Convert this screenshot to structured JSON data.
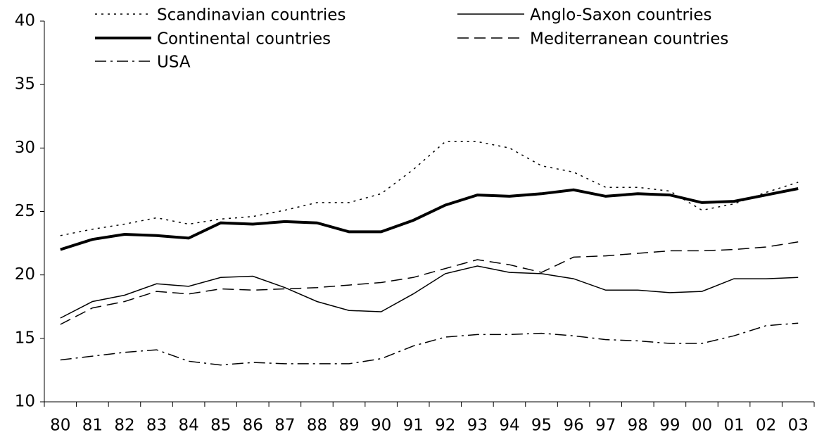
{
  "chart_data": {
    "type": "line",
    "categories": [
      "80",
      "81",
      "82",
      "83",
      "84",
      "85",
      "86",
      "87",
      "88",
      "89",
      "90",
      "91",
      "92",
      "93",
      "94",
      "95",
      "96",
      "97",
      "98",
      "99",
      "00",
      "01",
      "02",
      "03"
    ],
    "ylim": [
      10,
      40
    ],
    "yticks": [
      10,
      15,
      20,
      25,
      30,
      35,
      40
    ],
    "series": [
      {
        "name": "Scandinavian countries",
        "color": "#000000",
        "line_style": "dotted",
        "line_width": 1.5,
        "values": [
          23.1,
          23.6,
          24.0,
          24.5,
          24.0,
          24.4,
          24.6,
          25.1,
          25.7,
          25.7,
          26.4,
          28.3,
          30.5,
          30.5,
          30.0,
          28.6,
          28.1,
          26.9,
          26.9,
          26.6,
          25.1,
          25.6,
          26.5,
          27.3
        ]
      },
      {
        "name": "Anglo-Saxon countries",
        "color": "#000000",
        "line_style": "solid",
        "line_width": 1.5,
        "values": [
          16.6,
          17.9,
          18.4,
          19.3,
          19.1,
          19.8,
          19.9,
          19.0,
          17.9,
          17.2,
          17.1,
          18.5,
          20.1,
          20.7,
          20.2,
          20.1,
          19.7,
          18.8,
          18.8,
          18.6,
          18.7,
          19.7,
          19.7,
          19.8
        ]
      },
      {
        "name": "Continental countries",
        "color": "#000000",
        "line_style": "solid",
        "line_width": 4,
        "values": [
          22.0,
          22.8,
          23.2,
          23.1,
          22.9,
          24.1,
          24.0,
          24.2,
          24.1,
          23.4,
          23.4,
          24.3,
          25.5,
          26.3,
          26.2,
          26.4,
          26.7,
          26.2,
          26.4,
          26.3,
          25.7,
          25.8,
          26.3,
          26.8
        ]
      },
      {
        "name": "Mediterranean countries",
        "color": "#000000",
        "line_style": "dashed",
        "line_width": 1.5,
        "values": [
          16.1,
          17.4,
          17.9,
          18.7,
          18.5,
          18.9,
          18.8,
          18.9,
          19.0,
          19.2,
          19.4,
          19.8,
          20.5,
          21.2,
          20.8,
          20.2,
          21.4,
          21.5,
          21.7,
          21.9,
          21.9,
          22.0,
          22.2,
          22.6
        ]
      },
      {
        "name": "USA",
        "color": "#000000",
        "line_style": "dashdot",
        "line_width": 1.5,
        "values": [
          13.3,
          13.6,
          13.9,
          14.1,
          13.2,
          12.9,
          13.1,
          13.0,
          13.0,
          13.0,
          13.4,
          14.4,
          15.1,
          15.3,
          15.3,
          15.4,
          15.2,
          14.9,
          14.8,
          14.6,
          14.6,
          15.2,
          16.0,
          16.2
        ]
      }
    ]
  }
}
